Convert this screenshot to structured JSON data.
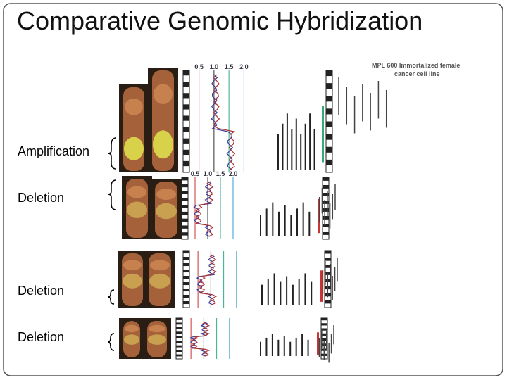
{
  "title": "Comparative Genomic Hybridization",
  "labels": [
    "Amplification",
    "Deletion",
    "Deletion",
    "Deletion"
  ],
  "figure": {
    "caption": [
      "MPL 600  Immortalized female",
      "cancer cell line"
    ],
    "ratio_ticks": [
      "0.5",
      "1.0",
      "1.5",
      "2.0"
    ]
  }
}
